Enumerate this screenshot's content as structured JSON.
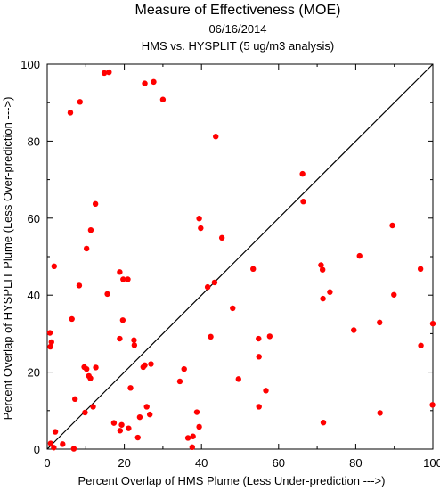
{
  "chart_data": {
    "type": "scatter",
    "title": "Measure of Effectiveness (MOE)",
    "subtitle": "06/16/2014",
    "subtitle2": "HMS vs. HYSPLIT  (5 ug/m3 analysis)",
    "xlabel": "Percent Overlap of HMS Plume (Less Under-prediction --->)",
    "ylabel": "Percent Overlap of HYSPLIT Plume (Less Over-prediction --->)",
    "xlim": [
      0,
      100
    ],
    "ylim": [
      0,
      100
    ],
    "xticks": [
      "0",
      "20",
      "40",
      "60",
      "80",
      "100"
    ],
    "yticks": [
      "0",
      "20",
      "40",
      "60",
      "80",
      "100"
    ],
    "diagonal": true,
    "grid": false,
    "point_color": "#ff0000",
    "points": [
      [
        14.8,
        97.7
      ],
      [
        16.0,
        97.9
      ],
      [
        25.3,
        95.0
      ],
      [
        27.6,
        95.4
      ],
      [
        30.0,
        90.8
      ],
      [
        8.5,
        90.2
      ],
      [
        6.0,
        87.4
      ],
      [
        43.7,
        81.2
      ],
      [
        66.2,
        71.5
      ],
      [
        66.4,
        64.3
      ],
      [
        12.5,
        63.7
      ],
      [
        39.4,
        59.9
      ],
      [
        39.8,
        57.4
      ],
      [
        89.5,
        58.1
      ],
      [
        11.3,
        56.9
      ],
      [
        45.3,
        54.9
      ],
      [
        10.2,
        52.1
      ],
      [
        81.0,
        50.2
      ],
      [
        1.8,
        47.5
      ],
      [
        53.4,
        46.8
      ],
      [
        71.0,
        47.8
      ],
      [
        71.4,
        46.6
      ],
      [
        96.8,
        46.8
      ],
      [
        18.8,
        46.0
      ],
      [
        19.7,
        44.1
      ],
      [
        20.9,
        44.1
      ],
      [
        43.4,
        43.3
      ],
      [
        41.6,
        42.1
      ],
      [
        8.3,
        42.5
      ],
      [
        73.3,
        40.8
      ],
      [
        15.6,
        40.3
      ],
      [
        89.9,
        40.1
      ],
      [
        71.5,
        39.1
      ],
      [
        48.1,
        36.6
      ],
      [
        6.4,
        33.8
      ],
      [
        19.6,
        33.5
      ],
      [
        86.2,
        32.9
      ],
      [
        100.0,
        32.6
      ],
      [
        79.5,
        30.9
      ],
      [
        0.7,
        30.2
      ],
      [
        57.7,
        29.3
      ],
      [
        42.4,
        29.2
      ],
      [
        18.8,
        28.7
      ],
      [
        54.8,
        28.7
      ],
      [
        22.5,
        28.3
      ],
      [
        1.1,
        27.8
      ],
      [
        0.8,
        26.6
      ],
      [
        22.6,
        27.0
      ],
      [
        96.9,
        26.9
      ],
      [
        54.9,
        24.0
      ],
      [
        26.9,
        22.1
      ],
      [
        25.3,
        21.8
      ],
      [
        24.9,
        21.3
      ],
      [
        9.6,
        21.3
      ],
      [
        10.2,
        20.8
      ],
      [
        12.6,
        21.2
      ],
      [
        35.5,
        20.8
      ],
      [
        10.8,
        19.0
      ],
      [
        11.2,
        18.4
      ],
      [
        49.6,
        18.2
      ],
      [
        34.4,
        17.6
      ],
      [
        21.6,
        15.9
      ],
      [
        56.7,
        15.2
      ],
      [
        7.2,
        13.0
      ],
      [
        11.9,
        11.0
      ],
      [
        25.8,
        11.0
      ],
      [
        54.9,
        11.0
      ],
      [
        99.9,
        11.5
      ],
      [
        9.8,
        9.5
      ],
      [
        26.6,
        9.0
      ],
      [
        38.8,
        9.6
      ],
      [
        86.3,
        9.4
      ],
      [
        24.0,
        8.3
      ],
      [
        17.3,
        6.8
      ],
      [
        19.3,
        6.3
      ],
      [
        71.6,
        6.9
      ],
      [
        21.1,
        5.4
      ],
      [
        18.9,
        4.8
      ],
      [
        39.4,
        5.8
      ],
      [
        2.1,
        4.5
      ],
      [
        37.8,
        3.3
      ],
      [
        23.5,
        3.0
      ],
      [
        36.5,
        2.9
      ],
      [
        4.0,
        1.3
      ],
      [
        0.9,
        1.5
      ],
      [
        1.7,
        0.4
      ],
      [
        6.9,
        0.1
      ],
      [
        37.6,
        0.5
      ]
    ]
  }
}
